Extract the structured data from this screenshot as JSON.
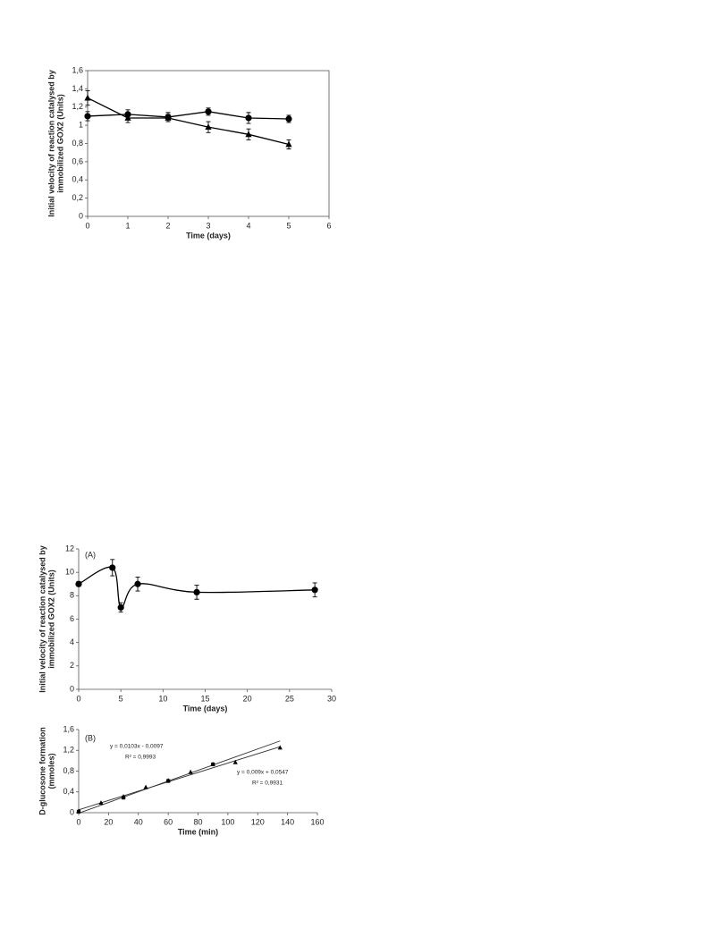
{
  "chart_data": [
    {
      "type": "line",
      "frame": true,
      "ylabel": [
        "Initial velocity of reaction catalysed by",
        "immobilized GOX2 (Units)"
      ],
      "xlabel": "Time (days)",
      "x": [
        0,
        1,
        2,
        3,
        4,
        5
      ],
      "xlim": [
        0,
        6
      ],
      "xticks": [
        0,
        1,
        2,
        3,
        4,
        5,
        6
      ],
      "ylim": [
        0,
        1.6
      ],
      "yticks": [
        0,
        {
          "value": 0.2,
          "label": "0,2"
        },
        {
          "value": 0.4,
          "label": "0,4"
        },
        {
          "value": 0.6,
          "label": "0,6"
        },
        {
          "value": 0.8,
          "label": "0,8"
        },
        1,
        {
          "value": 1.2,
          "label": "1,2"
        },
        {
          "value": 1.4,
          "label": "1,4"
        },
        {
          "value": 1.6,
          "label": "1,6"
        }
      ],
      "series": [
        {
          "color": "#000000",
          "marker": "circle",
          "values": [
            1.1,
            1.12,
            1.09,
            1.15,
            1.08,
            1.07
          ],
          "errors": [
            0.05,
            0.05,
            0.05,
            0.04,
            0.06,
            0.04
          ]
        },
        {
          "color": "#000000",
          "marker": "triangle",
          "values": [
            1.3,
            1.08,
            1.08,
            0.98,
            0.9,
            0.79
          ],
          "errors": [
            0.08,
            0.05,
            0.04,
            0.06,
            0.06,
            0.05
          ]
        }
      ]
    },
    {
      "type": "line",
      "smooth": true,
      "annotation": "(A)",
      "ylabel": [
        "Initial velocity of reaction catalysed by",
        "immobilized GOX2 (Units)"
      ],
      "xlabel": "Time (days)",
      "x": [
        0,
        4,
        5,
        7,
        14,
        28
      ],
      "xlim": [
        0,
        30
      ],
      "xticks": [
        0,
        5,
        10,
        15,
        20,
        25,
        30
      ],
      "ylim": [
        0,
        12
      ],
      "yticks": [
        0,
        2,
        4,
        6,
        8,
        10,
        12
      ],
      "series": [
        {
          "color": "#000000",
          "marker": "circle",
          "values": [
            9,
            10.4,
            7,
            9,
            8.3,
            8.5
          ],
          "errors": [
            0.2,
            0.7,
            0.4,
            0.6,
            0.6,
            0.6
          ]
        }
      ]
    },
    {
      "type": "scatter",
      "annotation": "(B)",
      "ylabel": [
        "D-glucosone formation",
        "(mmoles)"
      ],
      "xlabel": "Time (min)",
      "xlim": [
        0,
        160
      ],
      "xticks": [
        0,
        20,
        40,
        60,
        80,
        100,
        120,
        140,
        160
      ],
      "ylim": [
        0,
        1.6
      ],
      "yticks": [
        0,
        {
          "value": 0.4,
          "label": "0,4"
        },
        {
          "value": 0.8,
          "label": "0,8"
        },
        {
          "value": 1.2,
          "label": "1,2"
        },
        {
          "value": 1.6,
          "label": "1,6"
        }
      ],
      "series": [
        {
          "color": "#000000",
          "marker": "square",
          "x": [
            0,
            30,
            60,
            90
          ],
          "values": [
            0.02,
            0.29,
            0.61,
            0.93
          ]
        },
        {
          "color": "#000000",
          "marker": "triangle",
          "x": [
            0,
            15,
            30,
            45,
            60,
            75,
            90,
            105,
            135
          ],
          "values": [
            0.03,
            0.19,
            0.31,
            0.49,
            0.62,
            0.78,
            0.93,
            0.97,
            1.25
          ]
        }
      ],
      "fits": [
        {
          "slope": 0.0103,
          "intercept": -0.0097,
          "label": "y = 0,0103x - 0,0097",
          "r2_label": "R² = 0,9993"
        },
        {
          "slope": 0.009,
          "intercept": 0.0547,
          "label": "y = 0,009x + 0,0547",
          "r2_label": "R² = 0,9931"
        }
      ]
    }
  ]
}
